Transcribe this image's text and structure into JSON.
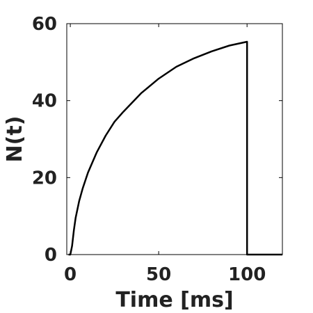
{
  "chart_data": {
    "type": "line",
    "title": "",
    "xlabel": "Time [ms]",
    "ylabel": "N(t)",
    "xlim": [
      -2,
      120
    ],
    "ylim": [
      0,
      60
    ],
    "xticks": [
      0,
      50,
      100
    ],
    "yticks": [
      0,
      20,
      40,
      60
    ],
    "xtick_labels": [
      "0",
      "50",
      "100"
    ],
    "ytick_labels": [
      "0",
      "20",
      "40",
      "60"
    ],
    "grid": false,
    "series": [
      {
        "color": "#000000",
        "x": [
          -1,
          0,
          1,
          2,
          3,
          5,
          7,
          10,
          15,
          20,
          25,
          30,
          40,
          50,
          60,
          70,
          80,
          90,
          100,
          100,
          110,
          120
        ],
        "y": [
          0,
          0,
          2.2,
          6.3,
          9.5,
          13.9,
          17.2,
          21.3,
          26.6,
          30.9,
          34.5,
          37.1,
          41.9,
          45.7,
          48.8,
          51.0,
          52.8,
          54.3,
          55.3,
          0,
          0,
          0
        ]
      }
    ]
  }
}
